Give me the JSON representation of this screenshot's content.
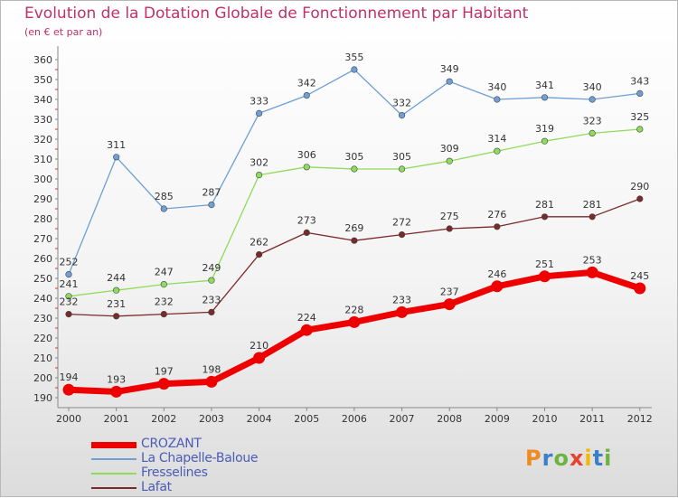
{
  "title": "Evolution de la Dotation Globale de Fonctionnement par Habitant",
  "subtitle": "(en € et par an)",
  "brand": "Proxiti",
  "brand_colors": [
    "#f08a24",
    "#3a7fc8",
    "#6cb33f",
    "#e8412c",
    "#f5b700",
    "#3a7fc8",
    "#6cb33f"
  ],
  "chart_data": {
    "type": "line",
    "title": "Evolution de la Dotation Globale de Fonctionnement par Habitant",
    "subtitle": "(en € et par an)",
    "xlabel": "",
    "ylabel": "",
    "categories": [
      "2000",
      "2001",
      "2002",
      "2003",
      "2004",
      "2005",
      "2006",
      "2007",
      "2008",
      "2009",
      "2010",
      "2011",
      "2012"
    ],
    "yticks": [
      "190",
      "200",
      "210",
      "220",
      "230",
      "240",
      "250",
      "260",
      "270",
      "280",
      "290",
      "300",
      "310",
      "320",
      "330",
      "340",
      "350",
      "360"
    ],
    "ylim": [
      190,
      360
    ],
    "grid": false,
    "legend_position": "bottom-left",
    "series": [
      {
        "name": "CROZANT",
        "color": "#ee0000",
        "values": [
          194,
          193,
          197,
          198,
          210,
          224,
          228,
          233,
          237,
          246,
          251,
          253,
          245
        ],
        "labels": [
          "194",
          "193",
          "197",
          "198",
          "210",
          "224",
          "228",
          "233",
          "237",
          "246",
          "251",
          "253",
          "245"
        ]
      },
      {
        "name": "La Chapelle-Baloue",
        "color": "#6f9fd4",
        "values": [
          252,
          311,
          285,
          287,
          333,
          342,
          355,
          332,
          349,
          340,
          341,
          340,
          343
        ],
        "labels": [
          "252",
          "311",
          "285",
          "287",
          "333",
          "342",
          "355",
          "332",
          "349",
          "340",
          "341",
          "340",
          "343"
        ]
      },
      {
        "name": "Fresselines",
        "color": "#8fdb5a",
        "values": [
          241,
          244,
          247,
          249,
          302,
          306,
          305,
          305,
          309,
          314,
          319,
          323,
          325
        ],
        "labels": [
          "241",
          "244",
          "247",
          "249",
          "302",
          "306",
          "305",
          "305",
          "309",
          "314",
          "319",
          "323",
          "325"
        ]
      },
      {
        "name": "Lafat",
        "color": "#7a2a2a",
        "values": [
          232,
          231,
          232,
          233,
          262,
          273,
          269,
          272,
          275,
          276,
          281,
          281,
          290
        ],
        "labels": [
          "232",
          "231",
          "232",
          "233",
          "262",
          "273",
          "269",
          "272",
          "275",
          "276",
          "281",
          "281",
          "290"
        ]
      }
    ]
  }
}
